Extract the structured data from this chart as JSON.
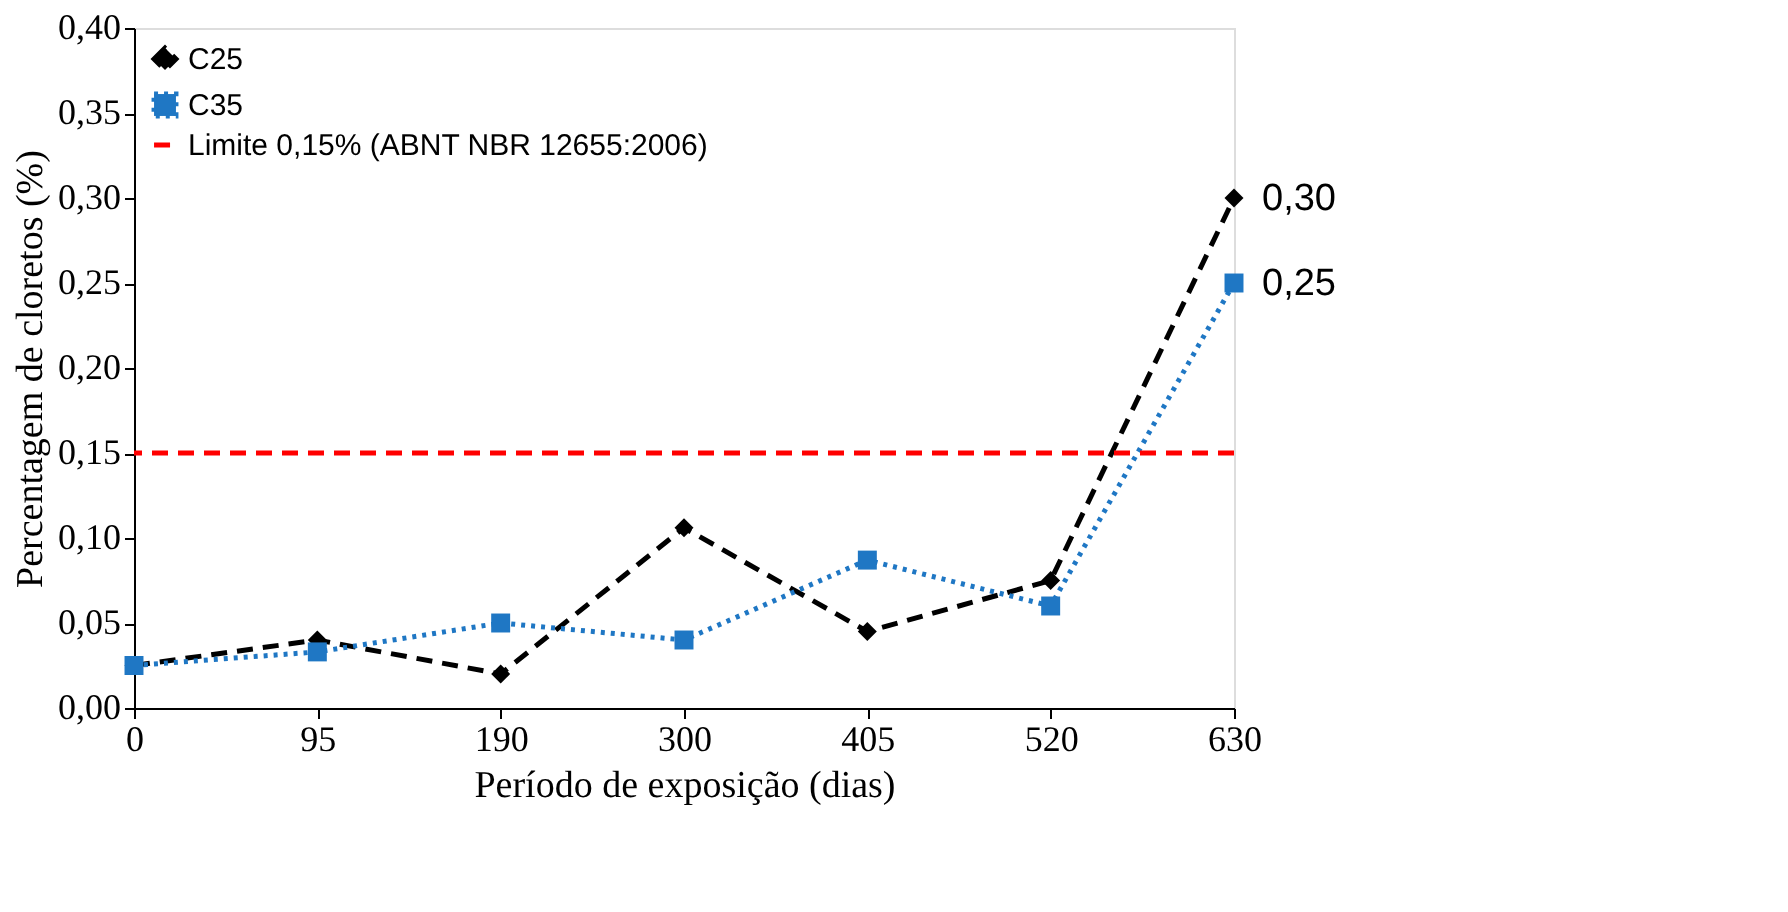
{
  "chart_data": {
    "type": "line",
    "xlabel": "Período de exposição  (dias)",
    "ylabel": "Percentagem de cloretos  (%)",
    "categories": [
      "0",
      "95",
      "190",
      "300",
      "405",
      "520",
      "630"
    ],
    "series": [
      {
        "name": "C25",
        "color": "#000000",
        "marker": "diamond",
        "line_style": "dashed",
        "values": [
          0.025,
          0.04,
          0.02,
          0.106,
          0.045,
          0.075,
          0.3
        ],
        "value_labels": [
          null,
          null,
          null,
          null,
          null,
          null,
          "0,30"
        ]
      },
      {
        "name": "C35",
        "color": "#1f77c4",
        "marker": "square",
        "line_style": "dotted",
        "values": [
          0.025,
          0.033,
          0.05,
          0.04,
          0.087,
          0.06,
          0.25
        ],
        "value_labels": [
          null,
          null,
          null,
          null,
          null,
          null,
          "0,25"
        ]
      }
    ],
    "ref_lines": [
      {
        "axis": "y",
        "value": 0.15,
        "label": "Limite 0,15% (ABNT NBR 12655:2006)",
        "color": "#ff0000",
        "line_style": "dashed"
      }
    ],
    "ylim": [
      0,
      0.4
    ],
    "yticks": [
      {
        "value": 0,
        "label": "0,00"
      },
      {
        "value": 0.05,
        "label": "0,05"
      },
      {
        "value": 0.1,
        "label": "0,10"
      },
      {
        "value": 0.15,
        "label": "0,15"
      },
      {
        "value": 0.2,
        "label": "0,20"
      },
      {
        "value": 0.25,
        "label": "0,25"
      },
      {
        "value": 0.3,
        "label": "0,30"
      },
      {
        "value": 0.35,
        "label": "0,35"
      },
      {
        "value": 0.4,
        "label": "0,40"
      }
    ],
    "legend": "top left"
  }
}
